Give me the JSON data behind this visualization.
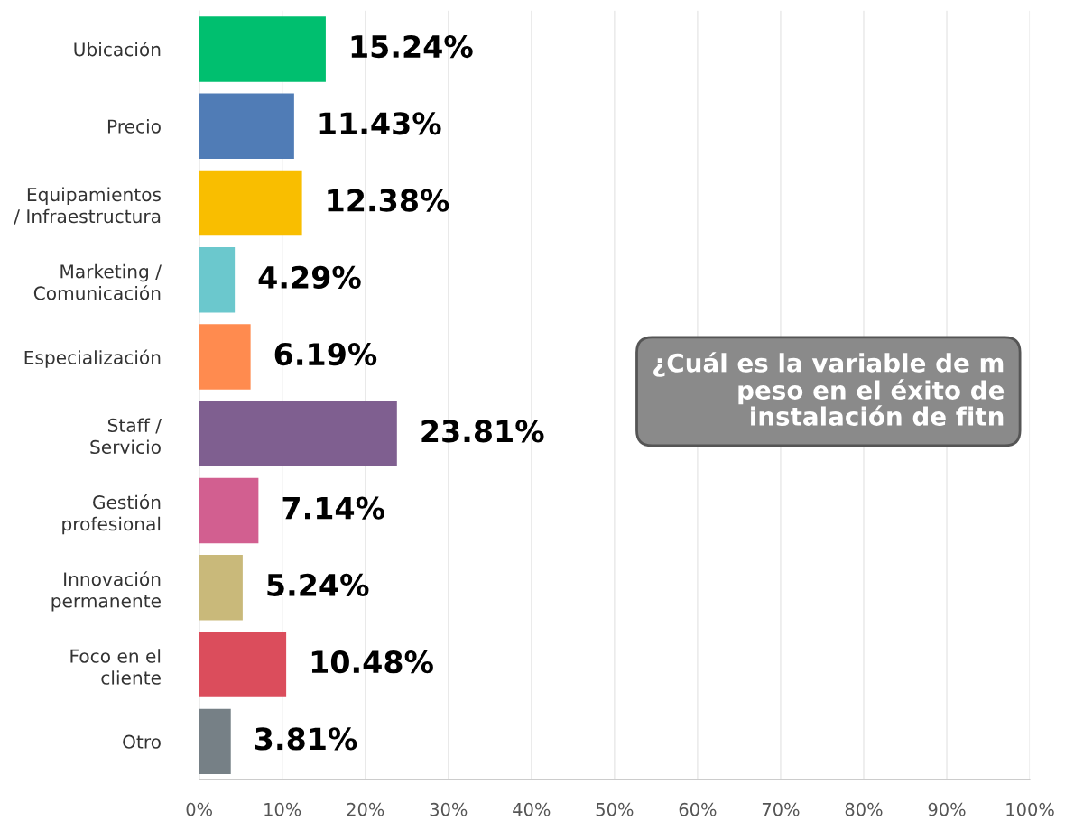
{
  "chart_data": {
    "type": "bar",
    "orientation": "horizontal",
    "categories": [
      "Ubicación",
      "Precio",
      "Equipamientos\n/ Infraestructura",
      "Marketing /\nComunicación",
      "Especialización",
      "Staff /\nServicio",
      "Gestión\nprofesional",
      "Innovación\npermanente",
      "Foco en el\ncliente",
      "Otro"
    ],
    "values": [
      15.24,
      11.43,
      12.38,
      4.29,
      6.19,
      23.81,
      7.14,
      5.24,
      10.48,
      3.81
    ],
    "colors": [
      "#00bf6f",
      "#507cb6",
      "#f9be00",
      "#6bc8cd",
      "#ff8b4f",
      "#7f5f90",
      "#d25f90",
      "#c9b97a",
      "#db4d5c",
      "#768086"
    ],
    "value_labels": [
      "15.24%",
      "11.43%",
      "12.38%",
      "4.29%",
      "6.19%",
      "23.81%",
      "7.14%",
      "5.24%",
      "10.48%",
      "3.81%"
    ],
    "xlim": [
      0,
      100
    ],
    "xticks": [
      {
        "value": 0,
        "label": "0%"
      },
      {
        "value": 10,
        "label": "10%"
      },
      {
        "value": 20,
        "label": "20%"
      },
      {
        "value": 30,
        "label": "30%"
      },
      {
        "value": 40,
        "label": "40%"
      },
      {
        "value": 50,
        "label": "50%"
      },
      {
        "value": 60,
        "label": "60%"
      },
      {
        "value": 70,
        "label": "70%"
      },
      {
        "value": 80,
        "label": "80%"
      },
      {
        "value": 90,
        "label": "90%"
      },
      {
        "value": 100,
        "label": "100%"
      }
    ],
    "grid": "x",
    "annotations": [
      "¿Cuál es la variable de m\npeso en el éxito de\ninstalación de fitn"
    ]
  }
}
